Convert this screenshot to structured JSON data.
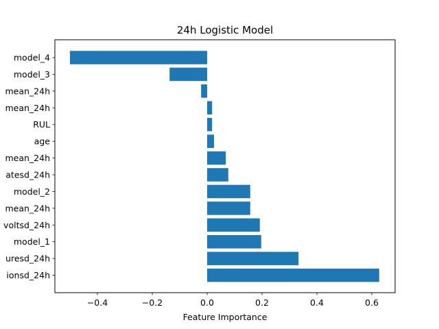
{
  "chart_data": {
    "type": "bar",
    "orientation": "horizontal",
    "title": "24h Logistic Model",
    "xlabel": "Feature Importance",
    "ylabel": "",
    "categories": [
      "model_4",
      "model_3",
      "mean_24h",
      "mean_24h",
      "RUL",
      "age",
      "mean_24h",
      "atesd_24h",
      "model_2",
      "mean_24h",
      "voltsd_24h",
      "model_1",
      "uresd_24h",
      "ionsd_24h"
    ],
    "values": [
      -0.5,
      -0.137,
      -0.022,
      0.018,
      0.018,
      0.025,
      0.068,
      0.077,
      0.157,
      0.157,
      0.192,
      0.197,
      0.333,
      0.627
    ],
    "xlim": [
      -0.555,
      0.685
    ],
    "xticks": [
      -0.4,
      -0.2,
      0.0,
      0.2,
      0.4,
      0.6
    ],
    "xtick_labels": [
      "−0.4",
      "−0.2",
      "0.0",
      "0.2",
      "0.4",
      "0.6"
    ],
    "bar_color": "#1f77b4",
    "grid": false,
    "legend": "none"
  }
}
